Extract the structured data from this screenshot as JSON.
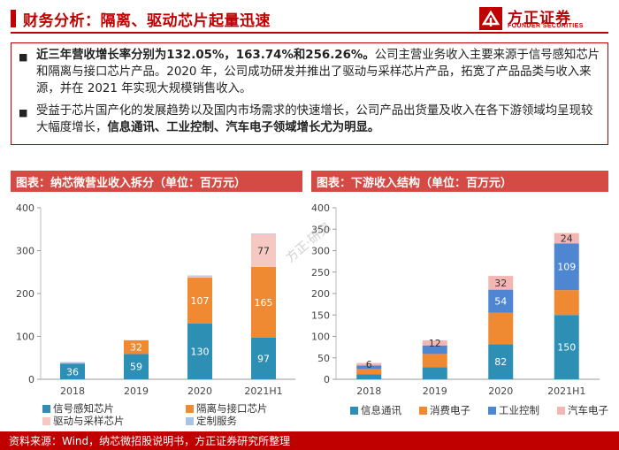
{
  "header": {
    "title": "财务分析：隔离、驱动芯片起量迅速",
    "logo_cn": "方正证券",
    "logo_en": "FOUNDER SECURITIES"
  },
  "bullets": [
    {
      "bold": "近三年营收增长率分别为132.05%，163.74%和256.26%。",
      "rest": "公司主营业务收入主要来源于信号感知芯片和隔离与接口芯片产品。2020 年，公司成功研发并推出了驱动与采样芯片产品，拓宽了产品品类与收入来源，并在 2021 年实现大规模销售收入。"
    },
    {
      "pre": "受益于芯片国产化的发展趋势以及国内市场需求的快速增长，公司产品出货量及收入在各下游领域均呈现较大幅度增长，",
      "bold": "信息通讯、工业控制、汽车电子领域增长尤为明显。"
    }
  ],
  "left_panel_title": "图表：纳芯微营业收入拆分（单位：百万元）",
  "right_panel_title": "图表：下游收入结构（单位：百万元）",
  "watermark": "方正·研究",
  "footer": "资料来源：Wind，纳芯微招股说明书，方正证券研究所整理",
  "chart_data": [
    {
      "type": "bar",
      "stacked": true,
      "categories": [
        "2018",
        "2019",
        "2020",
        "2021H1"
      ],
      "ylim": [
        0,
        400
      ],
      "yticks": [
        0,
        100,
        200,
        300,
        400
      ],
      "series": [
        {
          "name": "信号感知芯片",
          "color": "#2e8fb5",
          "values": [
            36,
            59,
            130,
            97
          ],
          "labels": [
            "36",
            "59",
            "130",
            "97"
          ]
        },
        {
          "name": "隔离与接口芯片",
          "color": "#f08a32",
          "values": [
            1,
            32,
            107,
            165
          ],
          "labels": [
            "",
            "32",
            "107",
            "165"
          ]
        },
        {
          "name": "驱动与采样芯片",
          "color": "#f5c8c3",
          "values": [
            0,
            0,
            3,
            77
          ],
          "labels": [
            "",
            "",
            "",
            "77"
          ]
        },
        {
          "name": "定制服务",
          "color": "#a9c3e4",
          "values": [
            3,
            0,
            2,
            1
          ],
          "labels": [
            "",
            "",
            "",
            ""
          ]
        }
      ],
      "legend": "bottom"
    },
    {
      "type": "bar",
      "stacked": true,
      "categories": [
        "2018",
        "2019",
        "2020",
        "2021H1"
      ],
      "ylim": [
        0,
        400
      ],
      "yticks": [
        0,
        50,
        100,
        150,
        200,
        250,
        300,
        350,
        400
      ],
      "series": [
        {
          "name": "信息通讯",
          "color": "#2e8fb5",
          "values": [
            12,
            28,
            82,
            150
          ],
          "labels": [
            "",
            "",
            "82",
            "150"
          ]
        },
        {
          "name": "消费电子",
          "color": "#f08a32",
          "values": [
            12,
            31,
            73,
            58
          ],
          "labels": [
            "",
            "",
            "",
            ""
          ]
        },
        {
          "name": "工业控制",
          "color": "#4f86d2",
          "values": [
            8,
            20,
            54,
            109
          ],
          "labels": [
            "",
            "",
            "54",
            "109"
          ]
        },
        {
          "name": "汽车电子",
          "color": "#f2b7b3",
          "values": [
            6,
            12,
            32,
            24
          ],
          "labels": [
            "6",
            "12",
            "32",
            "24"
          ]
        }
      ],
      "legend": "bottom"
    }
  ]
}
